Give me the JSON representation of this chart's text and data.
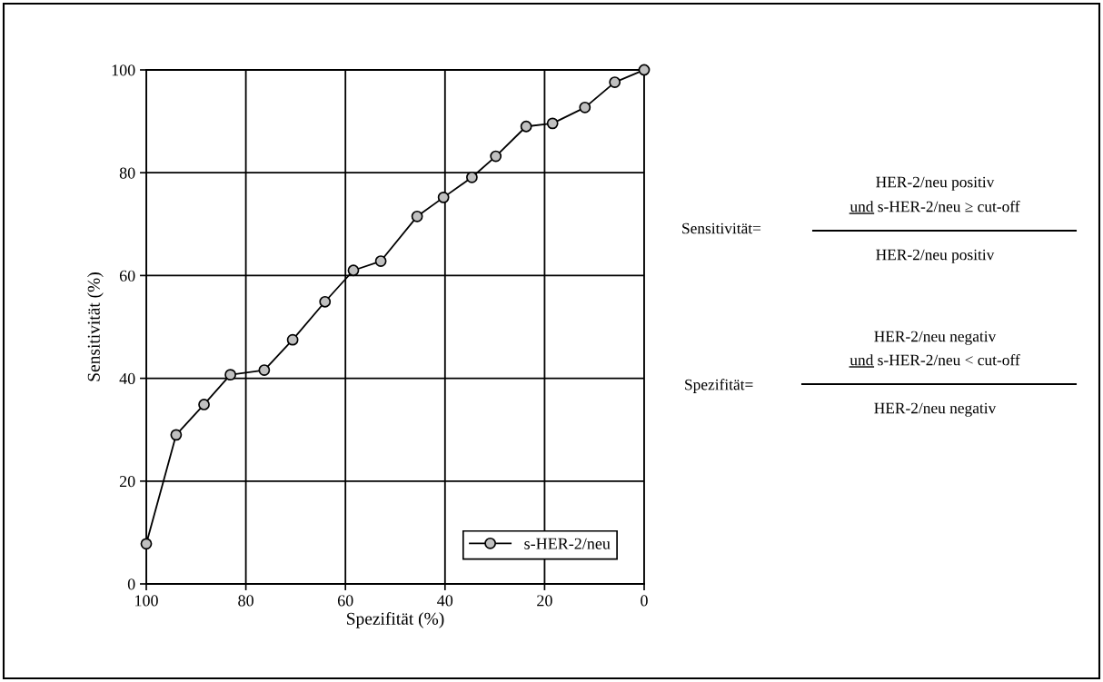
{
  "chart_data": {
    "type": "line",
    "xlabel": "Spezifität (%)",
    "ylabel": "Sensitivität (%)",
    "x": [
      100,
      94.0,
      88.4,
      83.1,
      76.3,
      70.6,
      64.1,
      58.4,
      52.9,
      45.6,
      40.3,
      34.6,
      29.8,
      23.7,
      18.4,
      11.9,
      5.9,
      0
    ],
    "series": [
      {
        "name": "s-HER-2/neu",
        "color": "#000000",
        "values": [
          7.8,
          29.0,
          34.9,
          40.7,
          41.6,
          47.5,
          54.9,
          61.0,
          62.8,
          71.5,
          75.2,
          79.1,
          83.2,
          89.0,
          89.6,
          92.7,
          97.6,
          100
        ]
      }
    ],
    "xlim": [
      100,
      0
    ],
    "ylim": [
      0,
      100
    ],
    "xticks": [
      100,
      80,
      60,
      40,
      20,
      0
    ],
    "yticks": [
      0,
      20,
      40,
      60,
      80,
      100
    ],
    "grid": true,
    "legend": "bottom right",
    "marker": "circle",
    "line_style": "solid",
    "annotations": [
      "Sensitivität=",
      "HER-2/neu positiv",
      "und s-HER-2/neu ≥ cut-off",
      "HER-2/neu positiv",
      "Spezifität=",
      "HER-2/neu negativ",
      "und s-HER-2/neu < cut-off",
      "HER-2/neu negativ"
    ]
  }
}
